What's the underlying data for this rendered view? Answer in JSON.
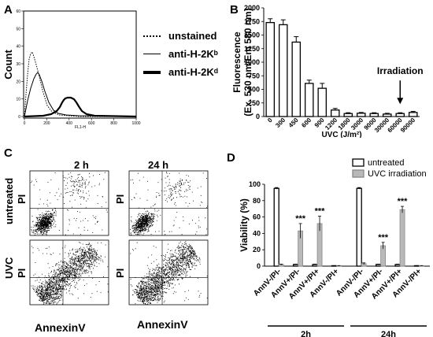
{
  "panels": {
    "a": "A",
    "b": "B",
    "c": "C",
    "d": "D"
  },
  "panel_a": {
    "ylabel": "Count",
    "xlabel": "FL1-H",
    "x_ticks": [
      "0",
      "200",
      "400",
      "600",
      "800",
      "1000"
    ],
    "y_ticks": [
      "0",
      "10",
      "20",
      "30",
      "40",
      "50",
      "60"
    ],
    "legend": [
      {
        "label": "unstained",
        "style": "dotted"
      },
      {
        "label": "anti-H-2Kᵇ",
        "style": "thin"
      },
      {
        "label": "anti-H-2Kᵈ",
        "style": "thick"
      }
    ]
  },
  "panel_c": {
    "col_labels": [
      "2 h",
      "24 h"
    ],
    "row_labels": [
      "untreated",
      "UVC"
    ],
    "ylabel": "PI",
    "xlabel": "AnnexinV"
  },
  "chart_data": [
    {
      "panel": "B",
      "type": "bar",
      "ylabel": "Fluorescence (Ex. 530 nm/Em 580 nm)",
      "xlabel": "UVC (J/m²)",
      "ylim": [
        0,
        2000
      ],
      "y_ticks": [
        "0",
        "250",
        "500",
        "750",
        "1000",
        "1250",
        "1500",
        "1750",
        "2000"
      ],
      "categories": [
        "0",
        "300",
        "450",
        "600",
        "900",
        "1200",
        "1800",
        "3000",
        "9000",
        "30000",
        "60000",
        "90000"
      ],
      "values": [
        1730,
        1690,
        1370,
        610,
        520,
        120,
        55,
        60,
        55,
        45,
        55,
        75
      ],
      "errors": [
        70,
        90,
        100,
        60,
        90,
        30,
        15,
        15,
        15,
        15,
        15,
        20
      ],
      "annotation": "Irradiation",
      "annotation_category": "60000",
      "grid": false
    },
    {
      "panel": "D",
      "type": "bar",
      "ylabel": "Viability (%)",
      "ylim": [
        0,
        100
      ],
      "y_ticks": [
        "0",
        "20",
        "40",
        "60",
        "80",
        "100"
      ],
      "groups": [
        "2h",
        "24h"
      ],
      "categories": [
        "AnnV-/PI-",
        "AnnV+/PI-",
        "AnnV+/PI+",
        "AnnV-/PI+"
      ],
      "series": [
        {
          "name": "untreated",
          "color": "#ffffff",
          "values": [
            [
              95,
              2,
              2,
              0.5
            ],
            [
              95,
              2,
              2,
              0.5
            ]
          ]
        },
        {
          "name": "UVC irradiation",
          "color": "#b9b9b9",
          "values": [
            [
              2,
              43,
              52,
              0.5
            ],
            [
              3,
              25,
              69,
              0.5
            ]
          ]
        }
      ],
      "errors": [
        [
          [
            1,
            0.5,
            0.5,
            0.2
          ],
          [
            1,
            0.5,
            0.5,
            0.2
          ]
        ],
        [
          [
            0.5,
            9,
            9,
            0.2
          ],
          [
            1,
            4,
            4,
            0.2
          ]
        ]
      ],
      "significance": "***",
      "legend_position": "top-right",
      "grid": false
    }
  ]
}
